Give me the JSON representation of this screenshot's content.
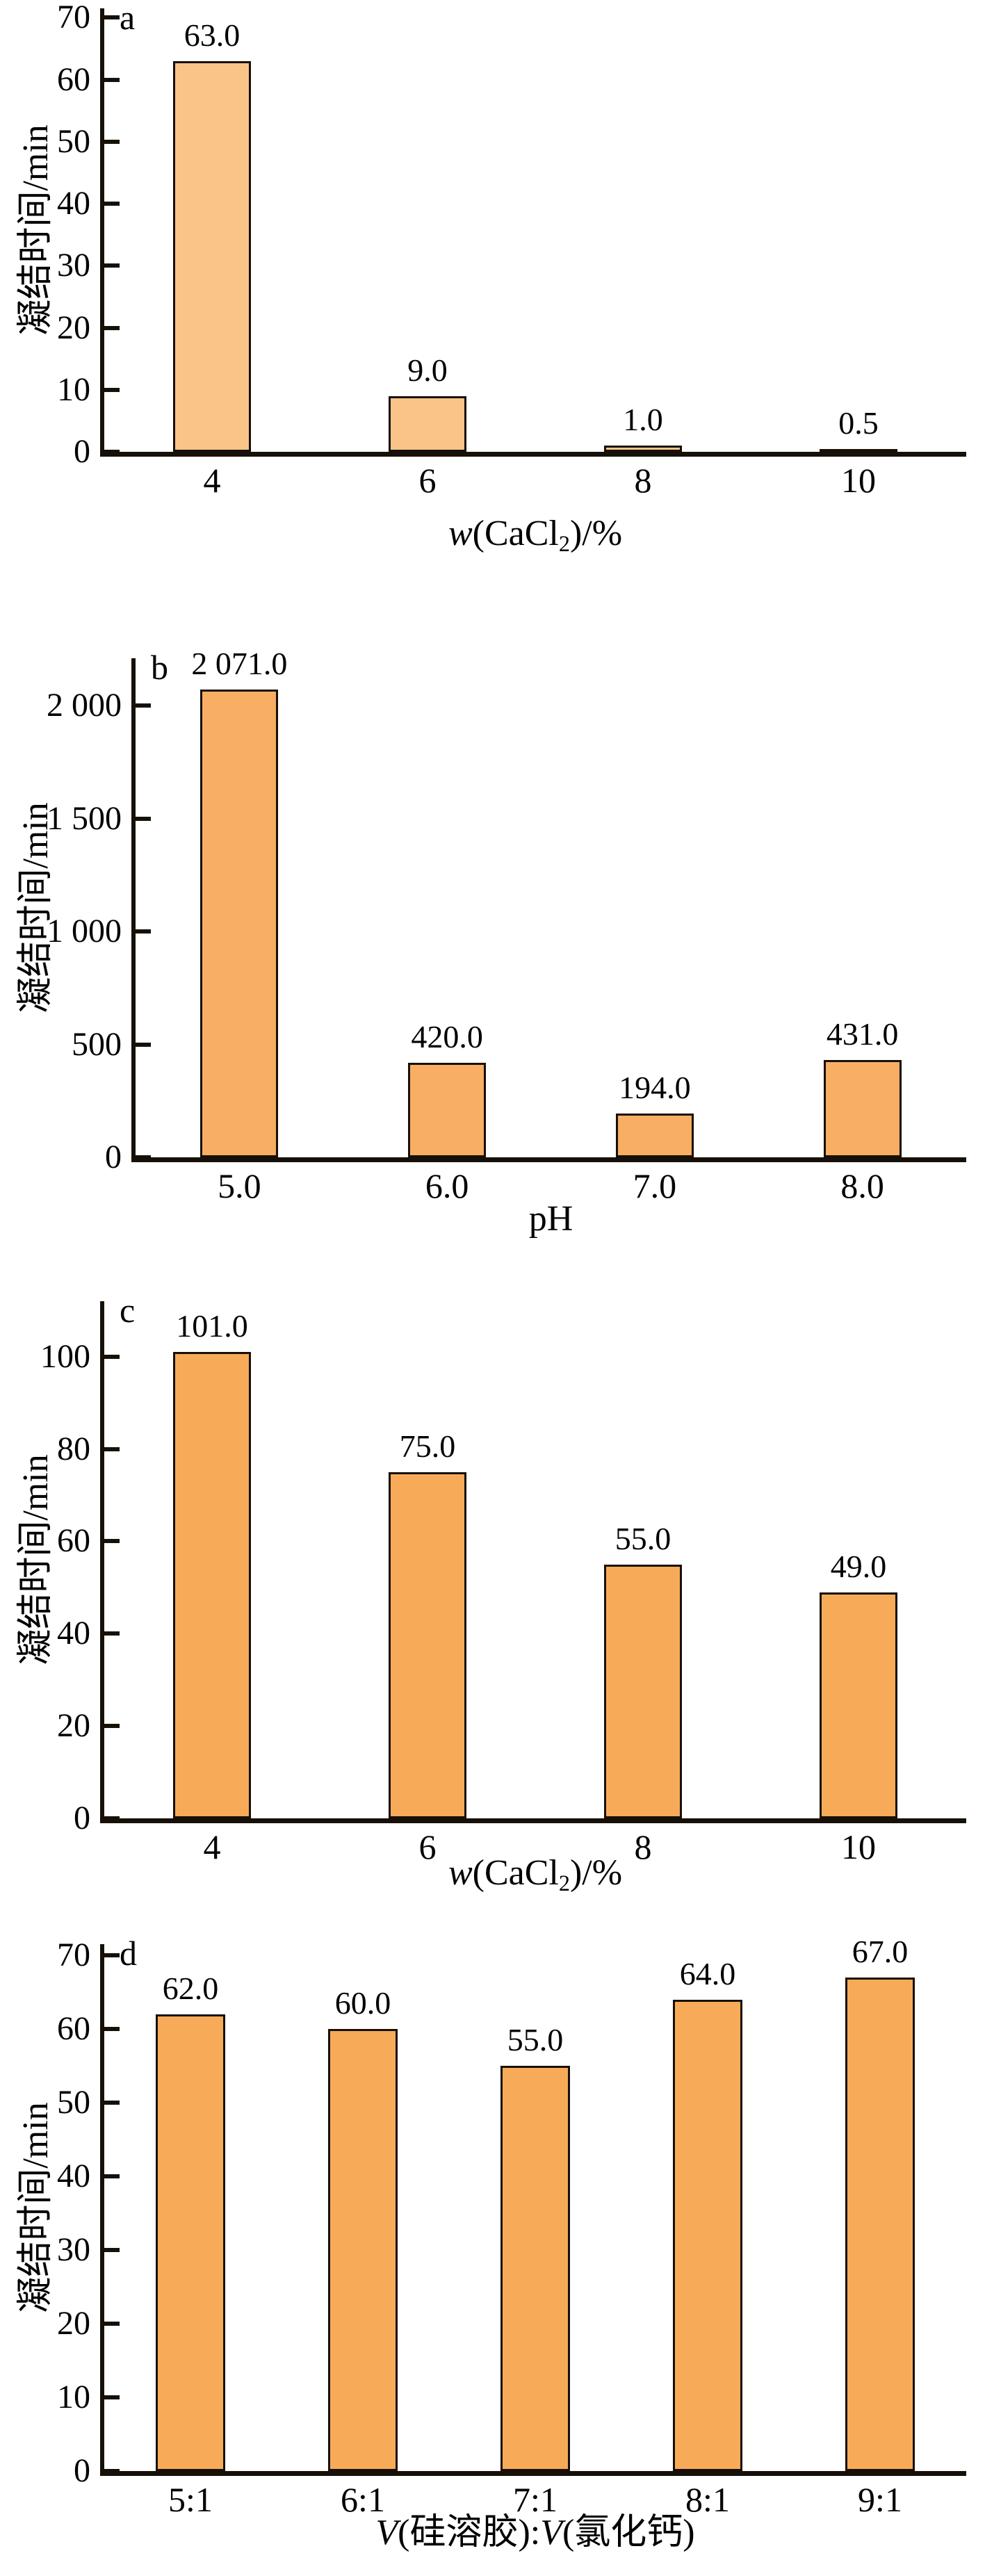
{
  "chart_data": [
    {
      "type": "bar",
      "panel_label": "a",
      "title": "",
      "ylabel": "凝结时间/min",
      "xlabel": "w(CaCl2)/%",
      "xlabel_parts": [
        {
          "text": "w",
          "style": "italic"
        },
        {
          "text": "(CaCl",
          "style": "normal"
        },
        {
          "text": "2",
          "style": "sub"
        },
        {
          "text": ")/%",
          "style": "normal"
        }
      ],
      "categories": [
        "4",
        "6",
        "8",
        "10"
      ],
      "values": [
        63.0,
        9.0,
        1.0,
        0.5
      ],
      "value_labels": [
        "63.0",
        "9.0",
        "1.0",
        "0.5"
      ],
      "yticks": [
        {
          "value": 0,
          "label": "0"
        },
        {
          "value": 10,
          "label": "10"
        },
        {
          "value": 20,
          "label": "20"
        },
        {
          "value": 30,
          "label": "30"
        },
        {
          "value": 40,
          "label": "40"
        },
        {
          "value": 50,
          "label": "50"
        },
        {
          "value": 60,
          "label": "60"
        },
        {
          "value": 70,
          "label": "70"
        }
      ],
      "ylim": [
        0,
        71.5
      ],
      "grid": false,
      "legend": "none",
      "bar_fill": "#FAC489",
      "bar_stroke": "#171008"
    },
    {
      "type": "bar",
      "panel_label": "b",
      "title": "",
      "ylabel": "凝结时间/min",
      "xlabel": "pH",
      "xlabel_parts": [
        {
          "text": "pH",
          "style": "normal"
        }
      ],
      "categories": [
        "5.0",
        "6.0",
        "7.0",
        "8.0"
      ],
      "values": [
        2071.0,
        420.0,
        194.0,
        431.0
      ],
      "value_labels": [
        "2 071.0",
        "420.0",
        "194.0",
        "431.0"
      ],
      "yticks": [
        {
          "value": 0,
          "label": "0"
        },
        {
          "value": 500,
          "label": "500"
        },
        {
          "value": 1000,
          "label": "1 000"
        },
        {
          "value": 1500,
          "label": "1 500"
        },
        {
          "value": 2000,
          "label": "2 000"
        }
      ],
      "ylim": [
        0,
        2210
      ],
      "grid": false,
      "legend": "none",
      "bar_fill": "#F8AE63",
      "bar_stroke": "#171008"
    },
    {
      "type": "bar",
      "panel_label": "c",
      "title": "",
      "ylabel": "凝结时间/min",
      "xlabel": "w(CaCl2)/%",
      "xlabel_parts": [
        {
          "text": "w",
          "style": "italic"
        },
        {
          "text": "(CaCl",
          "style": "normal"
        },
        {
          "text": "2",
          "style": "sub"
        },
        {
          "text": ")/%",
          "style": "normal"
        }
      ],
      "categories": [
        "4",
        "6",
        "8",
        "10"
      ],
      "values": [
        101.0,
        75.0,
        55.0,
        49.0
      ],
      "value_labels": [
        "101.0",
        "75.0",
        "55.0",
        "49.0"
      ],
      "yticks": [
        {
          "value": 0,
          "label": "0"
        },
        {
          "value": 20,
          "label": "20"
        },
        {
          "value": 40,
          "label": "40"
        },
        {
          "value": 60,
          "label": "60"
        },
        {
          "value": 80,
          "label": "80"
        },
        {
          "value": 100,
          "label": "100"
        }
      ],
      "ylim": [
        0,
        112
      ],
      "grid": false,
      "legend": "none",
      "bar_fill": "#F7AB58",
      "bar_stroke": "#171008"
    },
    {
      "type": "bar",
      "panel_label": "d",
      "title": "",
      "ylabel": "凝结时间/min",
      "xlabel": "V(硅溶胶):V(氯化钙)",
      "xlabel_parts": [
        {
          "text": "V",
          "style": "italic"
        },
        {
          "text": "(硅溶胶):",
          "style": "normal"
        },
        {
          "text": "V",
          "style": "italic"
        },
        {
          "text": "(氯化钙)",
          "style": "normal"
        }
      ],
      "categories": [
        "5:1",
        "6:1",
        "7:1",
        "8:1",
        "9:1"
      ],
      "values": [
        62.0,
        60.0,
        55.0,
        64.0,
        67.0
      ],
      "value_labels": [
        "62.0",
        "60.0",
        "55.0",
        "64.0",
        "67.0"
      ],
      "yticks": [
        {
          "value": 0,
          "label": "0"
        },
        {
          "value": 10,
          "label": "10"
        },
        {
          "value": 20,
          "label": "20"
        },
        {
          "value": 30,
          "label": "30"
        },
        {
          "value": 40,
          "label": "40"
        },
        {
          "value": 50,
          "label": "50"
        },
        {
          "value": 60,
          "label": "60"
        },
        {
          "value": 70,
          "label": "70"
        }
      ],
      "ylim": [
        0,
        71.5
      ],
      "grid": false,
      "legend": "none",
      "bar_fill": "#F7AB58",
      "bar_stroke": "#171008"
    }
  ]
}
